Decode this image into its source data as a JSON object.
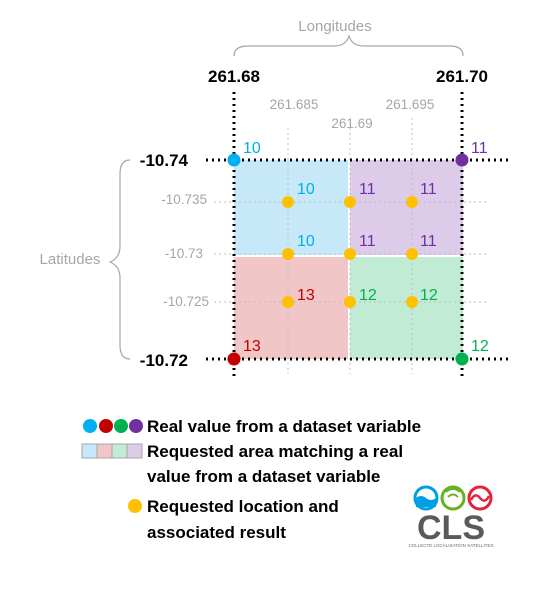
{
  "axes": {
    "longitudes_title": "Longitudes",
    "latitudes_title": "Latitudes",
    "lon_major": [
      "261.68",
      "261.70"
    ],
    "lon_minor": [
      "261.685",
      "261.69",
      "261.695"
    ],
    "lat_major": [
      "-10.74",
      "-10.72"
    ],
    "lat_minor": [
      "-10.735",
      "-10.73",
      "-10.725"
    ]
  },
  "grid": {
    "corner_values": {
      "top_left": "10",
      "top_right": "11",
      "bottom_left": "13",
      "bottom_right": "12"
    },
    "requested_values": {
      "r1": [
        "10",
        "11",
        "11"
      ],
      "r2": [
        "10",
        "11",
        "11"
      ],
      "r3": [
        "13",
        "12",
        "12"
      ]
    }
  },
  "legend": {
    "real_value": "Real value from a dataset variable",
    "requested_area_line1": "Requested area matching a real",
    "requested_area_line2": "value from a dataset variable",
    "requested_location_line1": "Requested location and",
    "requested_location_line2": "associated result"
  },
  "logo": {
    "name": "CLS",
    "tagline": "COLLECTE LOCALISATION SATELLITES"
  },
  "colors": {
    "blue": "#00b0f0",
    "red": "#c00000",
    "green": "#00b050",
    "purple": "#7030a0",
    "orange": "#ffc000",
    "fill_blue": "#c6e8f8",
    "fill_red": "#f0c6c6",
    "fill_green": "#c2ebd6",
    "fill_purple": "#dccbe9"
  }
}
